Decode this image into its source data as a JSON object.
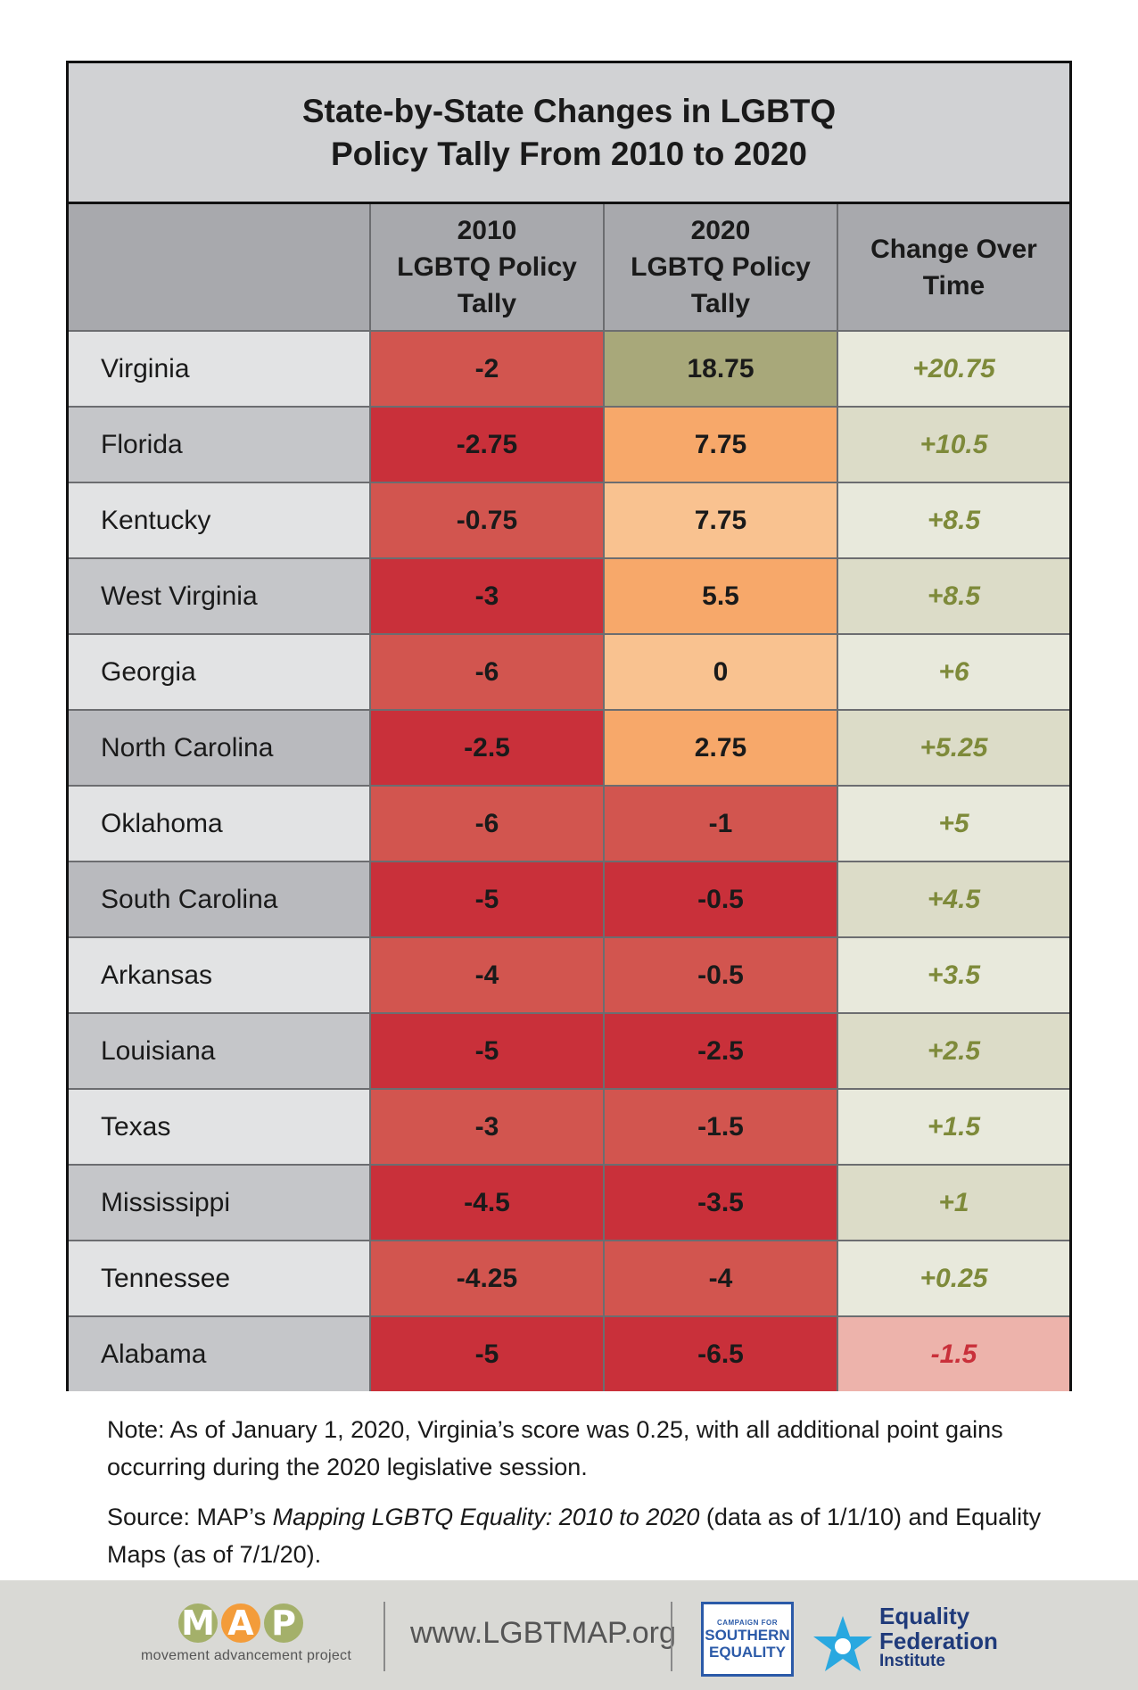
{
  "title": {
    "line1": "State-by-State Changes in LGBTQ",
    "line2": "Policy Tally From 2010 to 2020"
  },
  "columns": [
    "",
    "2010\nLGBTQ Policy\nTally",
    "2020\nLGBTQ Policy\nTally",
    "Change Over\nTime"
  ],
  "rows": [
    {
      "state": "Virginia",
      "t2010": "-2",
      "t2020": "18.75",
      "change": "+20.75"
    },
    {
      "state": "Florida",
      "t2010": "-2.75",
      "t2020": "7.75",
      "change": "+10.5"
    },
    {
      "state": "Kentucky",
      "t2010": "-0.75",
      "t2020": "7.75",
      "change": "+8.5"
    },
    {
      "state": "West Virginia",
      "t2010": "-3",
      "t2020": "5.5",
      "change": "+8.5"
    },
    {
      "state": "Georgia",
      "t2010": "-6",
      "t2020": "0",
      "change": "+6"
    },
    {
      "state": "North Carolina",
      "t2010": "-2.5",
      "t2020": "2.75",
      "change": "+5.25"
    },
    {
      "state": "Oklahoma",
      "t2010": "-6",
      "t2020": "-1",
      "change": "+5"
    },
    {
      "state": "South Carolina",
      "t2010": "-5",
      "t2020": "-0.5",
      "change": "+4.5"
    },
    {
      "state": "Arkansas",
      "t2010": "-4",
      "t2020": "-0.5",
      "change": "+3.5"
    },
    {
      "state": "Louisiana",
      "t2010": "-5",
      "t2020": "-2.5",
      "change": "+2.5"
    },
    {
      "state": "Texas",
      "t2010": "-3",
      "t2020": "-1.5",
      "change": "+1.5"
    },
    {
      "state": "Mississippi",
      "t2010": "-4.5",
      "t2020": "-3.5",
      "change": "+1"
    },
    {
      "state": "Tennessee",
      "t2010": "-4.25",
      "t2020": "-4",
      "change": "+0.25"
    },
    {
      "state": "Alabama",
      "t2010": "-5",
      "t2020": "-6.5",
      "change": "-1.5"
    }
  ],
  "colors": {
    "state_light": "#e2e3e4",
    "state_dark": "#c5c6c9",
    "red_light": "#d2554f",
    "red_dark": "#c9303a",
    "olive": "#a8a87a",
    "orange": "#f7a86a",
    "peach": "#f9c290",
    "change_light": "#e8e9dc",
    "change_dark": "#dcdcc8",
    "change_neg_bg": "#edb3ab",
    "change_pos_text": "#7e8a3a",
    "change_neg_text": "#c9303a"
  },
  "note": "Note: As of January 1, 2020, Virginia’s score was 0.25, with all additional point gains occurring during the 2020 legislative session.",
  "source": {
    "prefix": "Source: MAP’s ",
    "italic": "Mapping LGBTQ Equality: 2010 to 2020",
    "suffix": " (data as of 1/1/10) and Equality Maps (as of 7/1/20)."
  },
  "footer": {
    "map_letters": [
      "M",
      "A",
      "P"
    ],
    "map_colors": [
      "#a4b06a",
      "#f39c3a",
      "#a4b06a"
    ],
    "map_tagline": "movement advancement project",
    "url": "www.LGBTMAP.org",
    "cse_small": "CAMPAIGN FOR",
    "cse_line1": "SOUTHERN",
    "cse_line2": "EQUALITY",
    "eq_line1": "Equality",
    "eq_line2": "Federation",
    "eq_line3": "Institute"
  }
}
